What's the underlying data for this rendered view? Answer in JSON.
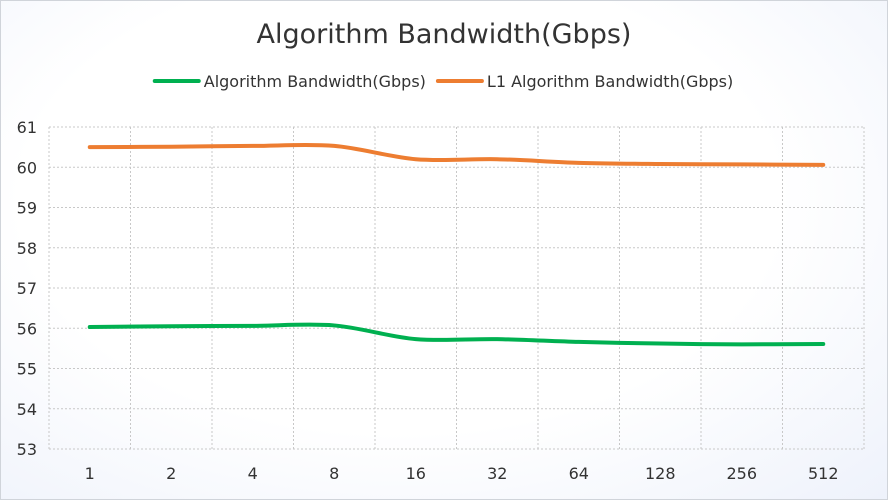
{
  "chart_data": {
    "type": "line",
    "title": "Algorithm Bandwidth(Gbps)",
    "xlabel": "",
    "ylabel": "",
    "categories": [
      "1",
      "2",
      "4",
      "8",
      "16",
      "32",
      "64",
      "128",
      "256",
      "512"
    ],
    "ylim": [
      53,
      61
    ],
    "yticks": [
      "53",
      "54",
      "55",
      "56",
      "57",
      "58",
      "59",
      "60",
      "61"
    ],
    "grid": true,
    "legend_position": "top",
    "series": [
      {
        "name": "Algorithm Bandwidth(Gbps)",
        "color": "#00b050",
        "values": [
          56.03,
          56.05,
          56.06,
          56.07,
          55.73,
          55.73,
          55.66,
          55.62,
          55.6,
          55.61
        ]
      },
      {
        "name": "L1 Algorithm Bandwidth(Gbps)",
        "color": "#ed7d31",
        "values": [
          60.5,
          60.51,
          60.53,
          60.53,
          60.2,
          60.2,
          60.11,
          60.08,
          60.07,
          60.06
        ]
      }
    ]
  }
}
